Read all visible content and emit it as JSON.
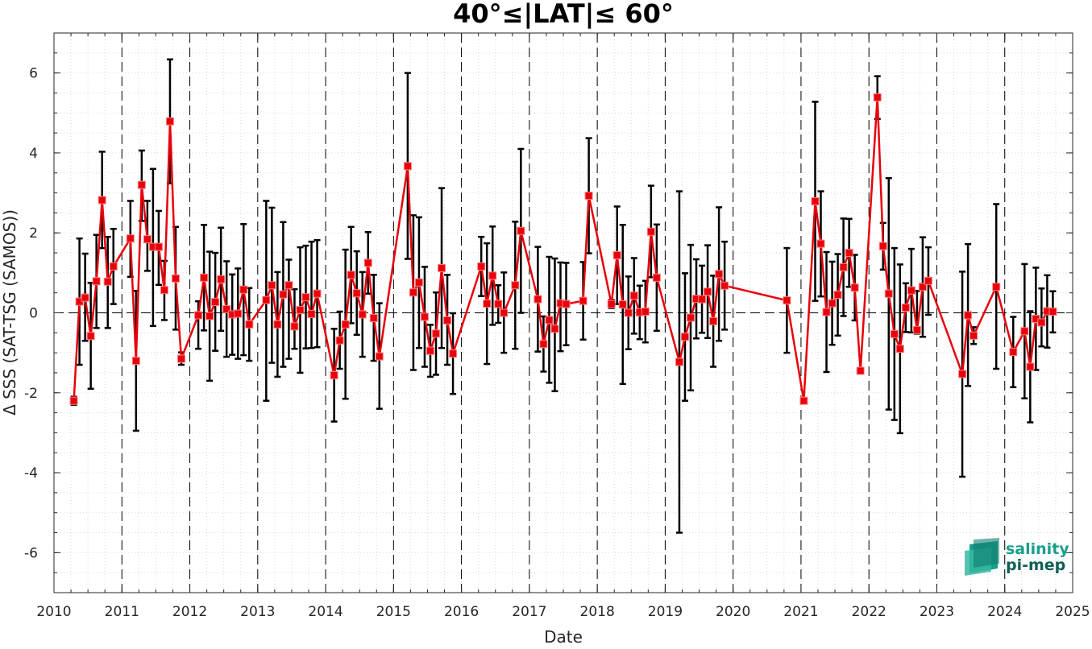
{
  "chart_data": {
    "type": "line",
    "title": "40°≤|LAT|≤ 60°",
    "xlabel": "Date",
    "ylabel": "Δ SSS (SAT-TSG (SAMOS))",
    "xlim": [
      2010,
      2025
    ],
    "ylim": [
      -7,
      7
    ],
    "x_ticks": [
      "2010",
      "2011",
      "2012",
      "2013",
      "2014",
      "2015",
      "2016",
      "2017",
      "2018",
      "2019",
      "2020",
      "2021",
      "2022",
      "2023",
      "2024",
      "2025"
    ],
    "y_ticks": [
      "-6",
      "-4",
      "-2",
      "0",
      "2",
      "4",
      "6"
    ],
    "grid": "minor dotted",
    "year_separators": "dashed vertical at each year",
    "zero_line": "dashed horizontal at 0",
    "colors": {
      "series": "#e8000b",
      "marker_edge": "#e8000b",
      "error_bars": "#000000",
      "logo_teal": "#1a9e8c",
      "logo_dark": "#0f5f55"
    },
    "series": [
      {
        "marker": "square",
        "points": [
          {
            "x": "2010-04",
            "y": -2.2,
            "lo": -2.3,
            "hi": -2.1
          },
          {
            "x": "2010-05",
            "y": 0.28,
            "lo": -1.3,
            "hi": 1.86
          },
          {
            "x": "2010-06",
            "y": 0.38,
            "lo": -0.7,
            "hi": 1.48
          },
          {
            "x": "2010-07",
            "y": -0.58,
            "lo": -1.9,
            "hi": 0.75
          },
          {
            "x": "2010-08",
            "y": 0.79,
            "lo": -0.38,
            "hi": 1.95
          },
          {
            "x": "2010-09",
            "y": 2.82,
            "lo": 1.62,
            "hi": 4.03
          },
          {
            "x": "2010-10",
            "y": 0.78,
            "lo": -0.38,
            "hi": 1.9
          },
          {
            "x": "2010-11",
            "y": 1.16,
            "lo": 0.22,
            "hi": 2.1
          },
          {
            "x": "2011-02",
            "y": 1.86,
            "lo": 0.9,
            "hi": 2.8
          },
          {
            "x": "2011-03",
            "y": -1.2,
            "lo": -2.95,
            "hi": 0.55
          },
          {
            "x": "2011-04",
            "y": 3.2,
            "lo": 2.3,
            "hi": 4.06
          },
          {
            "x": "2011-05",
            "y": 1.84,
            "lo": 1.05,
            "hi": 2.8
          },
          {
            "x": "2011-06",
            "y": 1.65,
            "lo": -0.33,
            "hi": 3.6
          },
          {
            "x": "2011-07",
            "y": 1.65,
            "lo": 0.7,
            "hi": 2.55
          },
          {
            "x": "2011-08",
            "y": 0.57,
            "lo": -0.18,
            "hi": 1.3
          },
          {
            "x": "2011-09",
            "y": 4.79,
            "lo": 3.24,
            "hi": 6.34
          },
          {
            "x": "2011-10",
            "y": 0.86,
            "lo": -0.42,
            "hi": 2.15
          },
          {
            "x": "2011-11",
            "y": -1.15,
            "lo": -1.3,
            "hi": -0.99
          },
          {
            "x": "2012-02",
            "y": -0.06,
            "lo": -0.9,
            "hi": 0.29
          },
          {
            "x": "2012-03",
            "y": 0.88,
            "lo": -0.44,
            "hi": 2.2
          },
          {
            "x": "2012-04",
            "y": -0.08,
            "lo": -1.7,
            "hi": 1.53
          },
          {
            "x": "2012-05",
            "y": 0.27,
            "lo": -0.95,
            "hi": 1.5
          },
          {
            "x": "2012-06",
            "y": 0.84,
            "lo": -0.45,
            "hi": 2.13
          },
          {
            "x": "2012-07",
            "y": 0.09,
            "lo": -1.1,
            "hi": 1.29
          },
          {
            "x": "2012-08",
            "y": -0.04,
            "lo": -1.05,
            "hi": 0.96
          },
          {
            "x": "2012-09",
            "y": -0.02,
            "lo": -1.15,
            "hi": 1.11
          },
          {
            "x": "2012-10",
            "y": 0.58,
            "lo": -1.06,
            "hi": 2.22
          },
          {
            "x": "2012-11",
            "y": -0.29,
            "lo": -1.2,
            "hi": 0.62
          },
          {
            "x": "2013-02",
            "y": 0.32,
            "lo": -2.2,
            "hi": 2.8
          },
          {
            "x": "2013-03",
            "y": 0.69,
            "lo": -1.25,
            "hi": 2.63
          },
          {
            "x": "2013-04",
            "y": -0.29,
            "lo": -1.6,
            "hi": 1.02
          },
          {
            "x": "2013-05",
            "y": 0.46,
            "lo": -1.35,
            "hi": 2.27
          },
          {
            "x": "2013-06",
            "y": 0.69,
            "lo": -1.15,
            "hi": 1.33
          },
          {
            "x": "2013-07",
            "y": -0.34,
            "lo": -0.9,
            "hi": 0.59
          },
          {
            "x": "2013-08",
            "y": 0.07,
            "lo": -1.5,
            "hi": 1.64
          },
          {
            "x": "2013-09",
            "y": 0.39,
            "lo": -0.89,
            "hi": 1.68
          },
          {
            "x": "2013-10",
            "y": -0.03,
            "lo": -0.88,
            "hi": 1.78
          },
          {
            "x": "2013-11",
            "y": 0.48,
            "lo": -0.86,
            "hi": 1.82
          },
          {
            "x": "2014-02",
            "y": -1.56,
            "lo": -2.72,
            "hi": -0.4
          },
          {
            "x": "2014-03",
            "y": -0.69,
            "lo": -1.4,
            "hi": 0.03
          },
          {
            "x": "2014-04",
            "y": -0.29,
            "lo": -2.15,
            "hi": 1.58
          },
          {
            "x": "2014-05",
            "y": 0.95,
            "lo": -0.26,
            "hi": 2.15
          },
          {
            "x": "2014-06",
            "y": 0.49,
            "lo": -0.55,
            "hi": 1.54
          },
          {
            "x": "2014-07",
            "y": -0.04,
            "lo": -1.1,
            "hi": 1.02
          },
          {
            "x": "2014-08",
            "y": 1.25,
            "lo": 0.48,
            "hi": 2.02
          },
          {
            "x": "2014-09",
            "y": -0.13,
            "lo": -1.2,
            "hi": 0.95
          },
          {
            "x": "2014-10",
            "y": -1.09,
            "lo": -2.4,
            "hi": 0.24
          },
          {
            "x": "2015-03",
            "y": 3.67,
            "lo": 1.35,
            "hi": 6.0
          },
          {
            "x": "2015-04",
            "y": 0.51,
            "lo": -1.43,
            "hi": 2.44
          },
          {
            "x": "2015-05",
            "y": 0.76,
            "lo": -0.88,
            "hi": 2.39
          },
          {
            "x": "2015-06",
            "y": -0.1,
            "lo": -1.35,
            "hi": 1.15
          },
          {
            "x": "2015-07",
            "y": -0.95,
            "lo": -1.6,
            "hi": -0.3
          },
          {
            "x": "2015-08",
            "y": -0.52,
            "lo": -1.55,
            "hi": 0.51
          },
          {
            "x": "2015-09",
            "y": 1.12,
            "lo": -0.88,
            "hi": 3.12
          },
          {
            "x": "2015-10",
            "y": -0.19,
            "lo": -1.3,
            "hi": 0.95
          },
          {
            "x": "2015-11",
            "y": -1.02,
            "lo": -2.03,
            "hi": -0.01
          },
          {
            "x": "2016-04",
            "y": 1.16,
            "lo": 0.42,
            "hi": 1.9
          },
          {
            "x": "2016-05",
            "y": 0.23,
            "lo": -1.28,
            "hi": 1.74
          },
          {
            "x": "2016-06",
            "y": 0.93,
            "lo": -0.3,
            "hi": 2.16
          },
          {
            "x": "2016-07",
            "y": 0.22,
            "lo": -0.25,
            "hi": 0.69
          },
          {
            "x": "2016-08",
            "y": 0.0,
            "lo": -1.0,
            "hi": 1.01
          },
          {
            "x": "2016-10",
            "y": 0.69,
            "lo": -0.9,
            "hi": 2.28
          },
          {
            "x": "2016-11",
            "y": 2.05,
            "lo": 0.0,
            "hi": 4.1
          },
          {
            "x": "2017-02",
            "y": 0.34,
            "lo": -0.97,
            "hi": 1.65
          },
          {
            "x": "2017-03",
            "y": -0.78,
            "lo": -1.47,
            "hi": -0.09
          },
          {
            "x": "2017-04",
            "y": -0.18,
            "lo": -1.75,
            "hi": 1.4
          },
          {
            "x": "2017-05",
            "y": -0.4,
            "lo": -1.96,
            "hi": 1.36
          },
          {
            "x": "2017-06",
            "y": 0.24,
            "lo": -0.96,
            "hi": 1.26
          },
          {
            "x": "2017-07",
            "y": 0.22,
            "lo": -0.81,
            "hi": 1.25
          },
          {
            "x": "2017-10",
            "y": 0.3,
            "lo": -0.67,
            "hi": 1.27
          },
          {
            "x": "2017-11",
            "y": 2.93,
            "lo": 1.49,
            "hi": 4.37
          },
          {
            "x": "2018-03",
            "y": 0.22,
            "lo": 0.12,
            "hi": 0.32
          },
          {
            "x": "2018-04",
            "y": 1.44,
            "lo": 0.22,
            "hi": 2.66
          },
          {
            "x": "2018-05",
            "y": 0.21,
            "lo": -1.78,
            "hi": 2.2
          },
          {
            "x": "2018-06",
            "y": 0.0,
            "lo": -0.91,
            "hi": 0.91
          },
          {
            "x": "2018-07",
            "y": 0.43,
            "lo": -0.52,
            "hi": 1.37
          },
          {
            "x": "2018-08",
            "y": 0.01,
            "lo": -0.66,
            "hi": 0.68
          },
          {
            "x": "2018-09",
            "y": 0.03,
            "lo": -0.74,
            "hi": 0.8
          },
          {
            "x": "2018-10",
            "y": 2.03,
            "lo": 0.89,
            "hi": 3.18
          },
          {
            "x": "2018-11",
            "y": 0.88,
            "lo": -0.45,
            "hi": 2.21
          },
          {
            "x": "2019-03",
            "y": -1.23,
            "lo": -5.5,
            "hi": 3.04
          },
          {
            "x": "2019-04",
            "y": -0.6,
            "lo": -2.2,
            "hi": 0.99
          },
          {
            "x": "2019-05",
            "y": -0.12,
            "lo": -1.94,
            "hi": 1.7
          },
          {
            "x": "2019-06",
            "y": 0.35,
            "lo": -0.64,
            "hi": 1.34
          },
          {
            "x": "2019-07",
            "y": 0.34,
            "lo": -0.5,
            "hi": 1.18
          },
          {
            "x": "2019-08",
            "y": 0.53,
            "lo": -0.63,
            "hi": 1.69
          },
          {
            "x": "2019-09",
            "y": -0.21,
            "lo": -1.35,
            "hi": 0.93
          },
          {
            "x": "2019-10",
            "y": 0.97,
            "lo": -0.7,
            "hi": 2.64
          },
          {
            "x": "2019-11",
            "y": 0.68,
            "lo": -0.42,
            "hi": 1.78
          },
          {
            "x": "2020-10",
            "y": 0.31,
            "lo": -1.0,
            "hi": 1.62
          },
          {
            "x": "2021-01",
            "y": -2.2,
            "lo": -2.25,
            "hi": -2.15
          },
          {
            "x": "2021-03",
            "y": 2.79,
            "lo": 0.3,
            "hi": 5.28
          },
          {
            "x": "2021-04",
            "y": 1.73,
            "lo": 0.41,
            "hi": 3.04
          },
          {
            "x": "2021-05",
            "y": 0.02,
            "lo": -1.48,
            "hi": 1.52
          },
          {
            "x": "2021-06",
            "y": 0.24,
            "lo": -0.8,
            "hi": 1.28
          },
          {
            "x": "2021-07",
            "y": 0.45,
            "lo": -0.57,
            "hi": 1.47
          },
          {
            "x": "2021-08",
            "y": 1.14,
            "lo": -0.08,
            "hi": 2.36
          },
          {
            "x": "2021-09",
            "y": 1.5,
            "lo": 0.65,
            "hi": 2.35
          },
          {
            "x": "2021-10",
            "y": 0.63,
            "lo": -0.19,
            "hi": 1.45
          },
          {
            "x": "2021-11",
            "y": -1.45,
            "lo": -1.5,
            "hi": -1.4
          },
          {
            "x": "2022-02",
            "y": 5.39,
            "lo": 4.85,
            "hi": 5.92
          },
          {
            "x": "2022-03",
            "y": 1.67,
            "lo": 1.08,
            "hi": 2.25
          },
          {
            "x": "2022-04",
            "y": 0.48,
            "lo": -2.42,
            "hi": 3.37
          },
          {
            "x": "2022-05",
            "y": -0.53,
            "lo": -2.68,
            "hi": 1.62
          },
          {
            "x": "2022-06",
            "y": -0.9,
            "lo": -3.01,
            "hi": 1.21
          },
          {
            "x": "2022-07",
            "y": 0.13,
            "lo": -0.48,
            "hi": 0.74
          },
          {
            "x": "2022-08",
            "y": 0.56,
            "lo": -0.49,
            "hi": 1.6
          },
          {
            "x": "2022-09",
            "y": -0.43,
            "lo": -0.52,
            "hi": 0.55
          },
          {
            "x": "2022-10",
            "y": 0.65,
            "lo": -0.6,
            "hi": 1.89
          },
          {
            "x": "2022-11",
            "y": 0.8,
            "lo": -0.05,
            "hi": 1.64
          },
          {
            "x": "2023-05",
            "y": -1.53,
            "lo": -4.1,
            "hi": 1.03
          },
          {
            "x": "2023-06",
            "y": -0.06,
            "lo": -1.83,
            "hi": 1.72
          },
          {
            "x": "2023-07",
            "y": -0.57,
            "lo": -0.78,
            "hi": -0.36
          },
          {
            "x": "2023-11",
            "y": 0.65,
            "lo": -1.4,
            "hi": 2.72
          },
          {
            "x": "2024-02",
            "y": -0.98,
            "lo": -1.86,
            "hi": -0.1
          },
          {
            "x": "2024-04",
            "y": -0.46,
            "lo": -2.14,
            "hi": 1.22
          },
          {
            "x": "2024-05",
            "y": -1.35,
            "lo": -2.74,
            "hi": 0.04
          },
          {
            "x": "2024-06",
            "y": -0.15,
            "lo": -1.43,
            "hi": 1.13
          },
          {
            "x": "2024-07",
            "y": -0.24,
            "lo": -0.84,
            "hi": 0.61
          },
          {
            "x": "2024-08",
            "y": 0.04,
            "lo": -0.87,
            "hi": 0.94
          },
          {
            "x": "2024-09",
            "y": 0.03,
            "lo": -0.49,
            "hi": 0.54
          }
        ],
        "gaps_after": [
          "2019-11"
        ]
      }
    ]
  },
  "logo": {
    "line1": "salinity",
    "line2": "pi-mep"
  }
}
